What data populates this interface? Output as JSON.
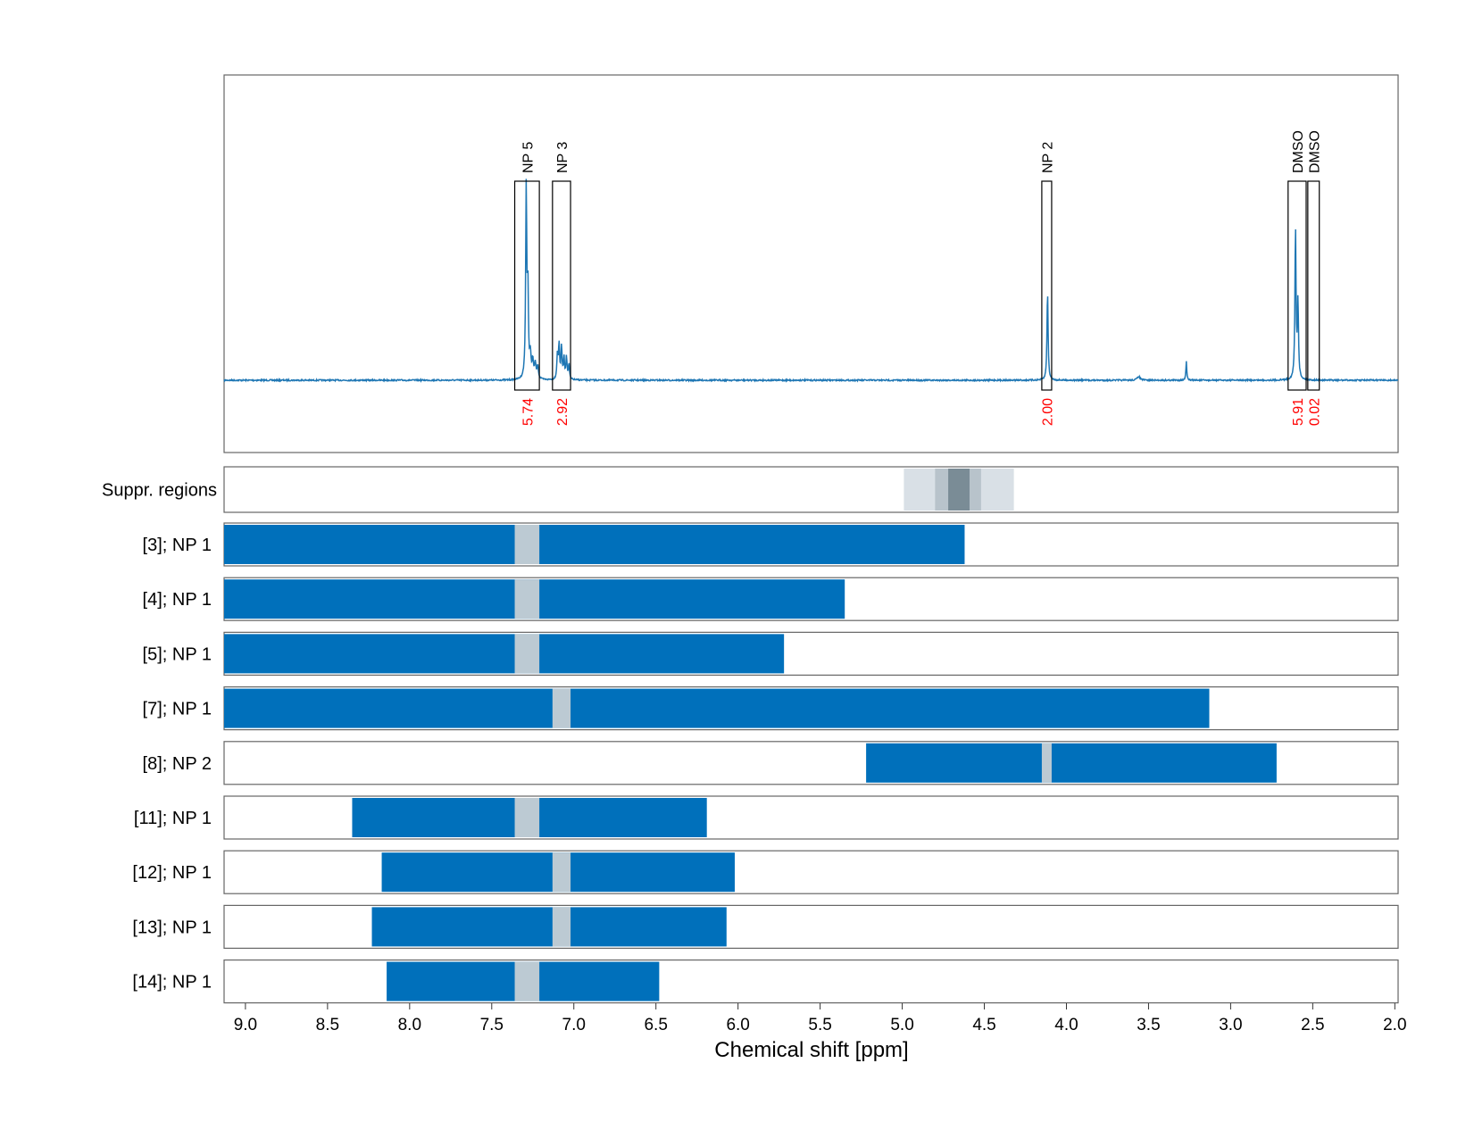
{
  "chart_data": {
    "type": "line",
    "xlabel": "Chemical shift [ppm]",
    "xlim": [
      9.13,
      1.98
    ],
    "x_ticks": [
      "9.0",
      "8.5",
      "8.0",
      "7.5",
      "7.0",
      "6.5",
      "6.0",
      "5.5",
      "5.0",
      "4.5",
      "4.0",
      "3.5",
      "3.0",
      "2.5",
      "2.0"
    ],
    "x_tick_values": [
      9.0,
      8.5,
      8.0,
      7.5,
      7.0,
      6.5,
      6.0,
      5.5,
      5.0,
      4.5,
      4.0,
      3.5,
      3.0,
      2.5,
      2.0
    ],
    "grid": "vertical dashed",
    "spectrum": {
      "color": "#1f77b4",
      "baseline": 0,
      "peaks": [
        {
          "ppm": 7.29,
          "height": 1.0,
          "width": 0.004
        },
        {
          "ppm": 7.28,
          "height": 0.45,
          "width": 0.004
        },
        {
          "ppm": 7.265,
          "height": 0.12,
          "width": 0.005
        },
        {
          "ppm": 7.25,
          "height": 0.09,
          "width": 0.005
        },
        {
          "ppm": 7.235,
          "height": 0.08,
          "width": 0.005
        },
        {
          "ppm": 7.22,
          "height": 0.07,
          "width": 0.005
        },
        {
          "ppm": 7.1,
          "height": 0.13,
          "width": 0.004
        },
        {
          "ppm": 7.09,
          "height": 0.18,
          "width": 0.004
        },
        {
          "ppm": 7.075,
          "height": 0.17,
          "width": 0.004
        },
        {
          "ppm": 7.06,
          "height": 0.11,
          "width": 0.004
        },
        {
          "ppm": 7.045,
          "height": 0.12,
          "width": 0.004
        },
        {
          "ppm": 7.03,
          "height": 0.08,
          "width": 0.004
        },
        {
          "ppm": 4.115,
          "height": 0.47,
          "width": 0.004
        },
        {
          "ppm": 3.56,
          "height": 0.02,
          "width": 0.01
        },
        {
          "ppm": 3.27,
          "height": 0.1,
          "width": 0.003
        },
        {
          "ppm": 2.605,
          "height": 0.79,
          "width": 0.004
        },
        {
          "ppm": 2.59,
          "height": 0.4,
          "width": 0.004
        }
      ]
    },
    "annotations": [
      {
        "label": "NP 5",
        "ppm_range": [
          7.36,
          7.21
        ],
        "integral": "5.74"
      },
      {
        "label": "NP 3",
        "ppm_range": [
          7.13,
          7.02
        ],
        "integral": "2.92"
      },
      {
        "label": "NP 2",
        "ppm_range": [
          4.15,
          4.09
        ],
        "integral": "2.00"
      },
      {
        "label": "DMSO",
        "ppm_range": [
          2.65,
          2.54
        ],
        "integral": "5.91"
      },
      {
        "label": "DMSO",
        "ppm_range": [
          2.53,
          2.46
        ],
        "integral": "0.02"
      }
    ],
    "suppression": {
      "label": "Suppr. regions",
      "bands": [
        {
          "range": [
            4.99,
            4.32
          ],
          "color": "#d9e0e6"
        },
        {
          "range": [
            4.8,
            4.52
          ],
          "color": "#b8c3cb"
        },
        {
          "range": [
            4.72,
            4.59
          ],
          "color": "#7a8c96"
        }
      ]
    },
    "rows": [
      {
        "label": "[3]; NP 1",
        "range": [
          9.13,
          4.62
        ],
        "gap": [
          7.36,
          7.21
        ]
      },
      {
        "label": "[4]; NP 1",
        "range": [
          9.13,
          5.35
        ],
        "gap": [
          7.36,
          7.21
        ]
      },
      {
        "label": "[5]; NP 1",
        "range": [
          9.13,
          5.72
        ],
        "gap": [
          7.36,
          7.21
        ]
      },
      {
        "label": "[7]; NP 1",
        "range": [
          9.13,
          3.13
        ],
        "gap": [
          7.13,
          7.02
        ]
      },
      {
        "label": "[8]; NP 2",
        "range": [
          5.22,
          2.72
        ],
        "gap": [
          4.15,
          4.09
        ]
      },
      {
        "label": "[11]; NP 1",
        "range": [
          8.35,
          6.19
        ],
        "gap": [
          7.36,
          7.21
        ]
      },
      {
        "label": "[12]; NP 1",
        "range": [
          8.17,
          6.02
        ],
        "gap": [
          7.13,
          7.02
        ]
      },
      {
        "label": "[13]; NP 1",
        "range": [
          8.23,
          6.07
        ],
        "gap": [
          7.13,
          7.02
        ]
      },
      {
        "label": "[14]; NP 1",
        "range": [
          8.14,
          6.48
        ],
        "gap": [
          7.36,
          7.21
        ]
      }
    ],
    "colors": {
      "bar": "#0070bb",
      "gap": "#bccad3",
      "integral_text": "#ff0000",
      "frame": "#666666",
      "grid": "#bbbbbb"
    }
  }
}
